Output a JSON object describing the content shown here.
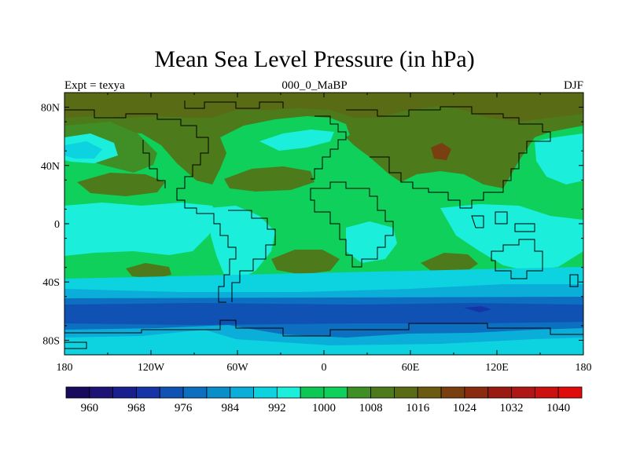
{
  "title": "Mean Sea Level Pressure (in hPa)",
  "subtitle_left": "Expt = texya",
  "subtitle_center": "000_0_MaBP",
  "subtitle_right": "DJF",
  "lat_ticks": [
    "80N",
    "40N",
    "0",
    "40S",
    "80S"
  ],
  "lat_values": [
    80,
    40,
    0,
    -40,
    -80
  ],
  "lon_ticks": [
    "180",
    "120W",
    "60W",
    "0",
    "60E",
    "120E",
    "180"
  ],
  "lon_values": [
    -180,
    -120,
    -60,
    0,
    60,
    120,
    180
  ],
  "colorbar": {
    "labels": [
      "960",
      "968",
      "976",
      "984",
      "992",
      "1000",
      "1008",
      "1016",
      "1024",
      "1032",
      "1040"
    ],
    "colors": [
      "#180a5c",
      "#1d1375",
      "#1a1f8f",
      "#1535a6",
      "#1052b3",
      "#0c6fbf",
      "#0a8ec9",
      "#0aaed8",
      "#0dd2e0",
      "#1ceedc",
      "#0dc853",
      "#0fd05a",
      "#3f8f26",
      "#4d7a1a",
      "#5a6b15",
      "#6a5a12",
      "#7a3f10",
      "#8a2a0e",
      "#9a1a12",
      "#b01616",
      "#cc1010",
      "#e00c0c"
    ]
  }
}
